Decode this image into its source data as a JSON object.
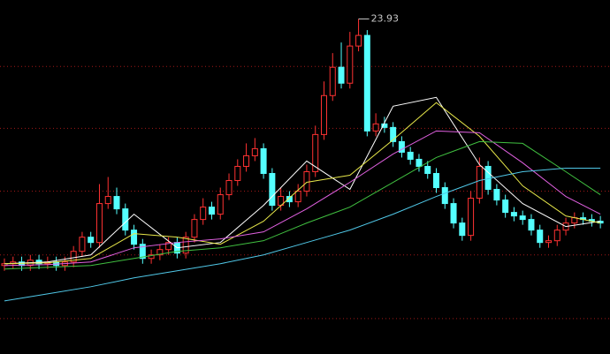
{
  "chart_data": {
    "type": "candlestick",
    "ylim": [
      5,
      25
    ],
    "grid_lines": [
      21.25,
      17.75,
      14.2,
      10.6,
      7.0
    ],
    "grid_color": "#a01818",
    "up_color": "#ff3232",
    "down_color": "#54ffff",
    "open": [
      10.0,
      10.1,
      10.2,
      10.0,
      10.3,
      10.1,
      10.2,
      10.0,
      10.2,
      10.8,
      11.6,
      11.3,
      13.5,
      13.9,
      13.2,
      12.0,
      11.2,
      10.4,
      10.6,
      10.9,
      11.3,
      10.7,
      11.6,
      12.6,
      13.3,
      12.9,
      14.0,
      14.8,
      15.6,
      16.2,
      16.6,
      15.2,
      13.4,
      13.9,
      13.6,
      14.2,
      15.3,
      17.4,
      19.6,
      21.2,
      20.3,
      22.4,
      23.0,
      17.6,
      18.0,
      17.8,
      17.0,
      16.4,
      16.0,
      15.6,
      15.2,
      14.4,
      13.5,
      12.4,
      11.7,
      13.8,
      15.6,
      14.3,
      13.7,
      13.0,
      12.8,
      12.6,
      12.0,
      11.3,
      11.4,
      12.0,
      12.4,
      12.7,
      12.6,
      12.5
    ],
    "high": [
      10.4,
      10.5,
      10.5,
      10.6,
      10.6,
      10.5,
      10.5,
      10.5,
      11.1,
      11.9,
      11.9,
      14.6,
      15.0,
      14.4,
      13.5,
      12.3,
      11.5,
      10.9,
      11.2,
      11.6,
      11.6,
      11.9,
      12.9,
      13.8,
      13.6,
      14.4,
      15.2,
      16.0,
      16.9,
      17.2,
      16.9,
      15.5,
      14.4,
      14.2,
      14.6,
      15.7,
      17.9,
      20.4,
      22.0,
      22.6,
      23.2,
      23.93,
      23.3,
      18.6,
      18.4,
      18.1,
      17.3,
      16.7,
      16.3,
      15.9,
      15.5,
      14.7,
      13.8,
      12.7,
      14.2,
      16.1,
      15.9,
      14.6,
      14.0,
      13.3,
      13.1,
      12.9,
      12.3,
      11.7,
      12.3,
      12.7,
      13.0,
      13.0,
      12.9,
      12.8
    ],
    "low": [
      9.7,
      9.8,
      9.7,
      9.7,
      9.8,
      9.8,
      9.7,
      9.7,
      9.9,
      10.5,
      11.0,
      11.0,
      13.2,
      12.9,
      11.7,
      10.9,
      10.1,
      10.1,
      10.3,
      10.6,
      10.4,
      10.4,
      11.3,
      12.3,
      12.6,
      12.6,
      13.7,
      14.5,
      15.3,
      15.9,
      14.9,
      13.1,
      13.1,
      13.3,
      13.3,
      13.9,
      15.0,
      17.1,
      19.3,
      20.0,
      20.0,
      22.1,
      17.3,
      17.3,
      17.5,
      16.7,
      16.1,
      15.7,
      15.3,
      14.9,
      14.1,
      13.2,
      12.1,
      11.4,
      11.4,
      13.5,
      14.0,
      13.4,
      12.7,
      12.5,
      12.3,
      11.7,
      11.0,
      11.0,
      11.1,
      11.7,
      12.1,
      12.3,
      12.2,
      12.1
    ],
    "close": [
      10.1,
      10.2,
      10.0,
      10.3,
      10.1,
      10.2,
      10.0,
      10.2,
      10.8,
      11.6,
      11.3,
      13.5,
      13.9,
      13.2,
      12.0,
      11.2,
      10.4,
      10.6,
      10.9,
      11.3,
      10.7,
      11.6,
      12.6,
      13.3,
      12.9,
      14.0,
      14.8,
      15.6,
      16.2,
      16.6,
      15.2,
      13.4,
      13.9,
      13.6,
      14.2,
      15.3,
      17.4,
      19.6,
      21.2,
      20.3,
      22.4,
      23.0,
      17.6,
      18.0,
      17.8,
      17.0,
      16.4,
      16.0,
      15.6,
      15.2,
      14.4,
      13.5,
      12.4,
      11.7,
      13.8,
      15.6,
      14.3,
      13.7,
      13.0,
      12.8,
      12.6,
      12.0,
      11.3,
      11.4,
      12.0,
      12.4,
      12.7,
      12.6,
      12.5,
      12.4
    ],
    "lines": [
      {
        "color": "#ffffff",
        "x": [
          0,
          5,
          10,
          15,
          20,
          25,
          30,
          35,
          40,
          45,
          50,
          55,
          60,
          65,
          69
        ],
        "values": [
          10.1,
          10.2,
          10.6,
          12.9,
          11.0,
          11.3,
          13.4,
          15.9,
          14.3,
          19.0,
          19.5,
          15.7,
          13.5,
          12.2,
          12.5
        ]
      },
      {
        "color": "#e8e84a",
        "x": [
          0,
          5,
          10,
          15,
          20,
          25,
          30,
          35,
          40,
          45,
          50,
          55,
          60,
          65,
          69
        ],
        "values": [
          10.1,
          10.15,
          10.4,
          11.8,
          11.6,
          11.2,
          12.5,
          14.7,
          15.1,
          17.1,
          19.2,
          17.3,
          14.5,
          12.8,
          12.4
        ]
      },
      {
        "color": "#e060e0",
        "x": [
          0,
          5,
          10,
          15,
          20,
          25,
          30,
          35,
          40,
          45,
          50,
          55,
          60,
          65,
          69
        ],
        "values": [
          10.0,
          10.05,
          10.2,
          11.0,
          11.3,
          11.5,
          11.9,
          13.2,
          14.7,
          16.3,
          17.6,
          17.5,
          15.8,
          13.9,
          12.9
        ]
      },
      {
        "color": "#40c040",
        "x": [
          0,
          5,
          10,
          15,
          20,
          25,
          30,
          35,
          40,
          45,
          50,
          55,
          60,
          65,
          69
        ],
        "values": [
          9.8,
          9.9,
          10.0,
          10.4,
          10.8,
          11.0,
          11.4,
          12.4,
          13.3,
          14.7,
          16.1,
          17.0,
          16.9,
          15.3,
          14.0
        ]
      },
      {
        "color": "#50c8e8",
        "x": [
          0,
          5,
          10,
          15,
          20,
          25,
          30,
          35,
          40,
          45,
          50,
          55,
          60,
          65,
          69
        ],
        "values": [
          8.0,
          8.4,
          8.8,
          9.3,
          9.7,
          10.1,
          10.6,
          11.3,
          12.0,
          12.9,
          13.9,
          14.8,
          15.3,
          15.5,
          15.5
        ]
      }
    ],
    "peak_index": 41
  }
}
